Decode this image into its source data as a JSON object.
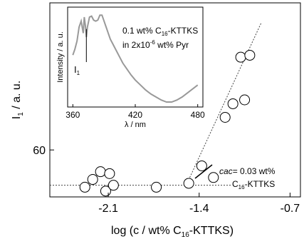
{
  "chart_data": {
    "type": "scatter",
    "xlabel": {
      "main": "log (c / wt% C",
      "sub": "16",
      "tail": "-KTTKS)"
    },
    "ylabel": {
      "main": "I",
      "sub": "1",
      "tail": " / a. u."
    },
    "xlim": [
      -2.55,
      -0.62
    ],
    "ylim": [
      0,
      1
    ],
    "xticks": [
      -2.1,
      -1.4,
      -0.7
    ],
    "xtick_labels": [
      "-2.1",
      "-1.4",
      "-0.7"
    ],
    "yticks": [
      0.242
    ],
    "ytick_labels": [
      "60"
    ],
    "grid": false,
    "series": [
      {
        "points": [
          {
            "x": -2.28,
            "y": 0.05
          },
          {
            "x": -2.22,
            "y": 0.09
          },
          {
            "x": -2.16,
            "y": 0.13
          },
          {
            "x": -2.12,
            "y": 0.03
          },
          {
            "x": -2.09,
            "y": 0.12
          },
          {
            "x": -2.06,
            "y": 0.06
          },
          {
            "x": -1.73,
            "y": 0.05
          },
          {
            "x": -1.48,
            "y": 0.07
          },
          {
            "x": -1.38,
            "y": 0.16
          },
          {
            "x": -1.29,
            "y": 0.1
          },
          {
            "x": -1.2,
            "y": 0.41
          },
          {
            "x": -1.14,
            "y": 0.48
          },
          {
            "x": -1.05,
            "y": 0.5
          },
          {
            "x": -1.08,
            "y": 0.72
          },
          {
            "x": -1.01,
            "y": 0.73
          }
        ]
      }
    ],
    "baseline_fit": {
      "x": [
        -2.55,
        -1.15
      ],
      "y": [
        0.06,
        0.06
      ]
    },
    "rise_fit": {
      "x": [
        -1.5,
        -0.92
      ],
      "y": [
        0.06,
        0.9
      ]
    },
    "annotation": {
      "line1": {
        "italic": "cac",
        "rest": "= 0.03 wt%"
      },
      "line2": {
        "main": "C",
        "sub": "16",
        "tail": "-KTTKS"
      }
    },
    "inset": {
      "type": "line",
      "xlabel": "λ / nm",
      "ylabel": "Intensity / a. u.",
      "xlim": [
        355,
        485
      ],
      "ylim": [
        0,
        1
      ],
      "xticks": [
        360,
        420,
        480
      ],
      "xtick_labels": [
        "360",
        "420",
        "480"
      ],
      "legend_line1": {
        "main": "0.1 wt% C",
        "sub": "16",
        "tail": "-KTTKS"
      },
      "legend_line2": {
        "main": "in 2x10",
        "sup": "-6",
        "tail": " wt% Pyr"
      },
      "marker_label": {
        "main": "I",
        "sub": "1"
      },
      "marker_x": 373,
      "spectrum": {
        "x": [
          360,
          362,
          364,
          366,
          368,
          370,
          371,
          372,
          373,
          374,
          376,
          378,
          380,
          382,
          384,
          386,
          388,
          390,
          392,
          394,
          396,
          398,
          400,
          404,
          408,
          412,
          416,
          420,
          425,
          430,
          435,
          440,
          445,
          450,
          455,
          460,
          465,
          470,
          475,
          480
        ],
        "y": [
          0.52,
          0.58,
          0.66,
          0.8,
          0.86,
          0.74,
          0.9,
          0.82,
          0.7,
          0.8,
          0.9,
          0.91,
          0.87,
          0.86,
          0.87,
          0.92,
          0.92,
          0.86,
          0.8,
          0.74,
          0.68,
          0.64,
          0.6,
          0.52,
          0.44,
          0.38,
          0.32,
          0.27,
          0.22,
          0.17,
          0.13,
          0.1,
          0.07,
          0.05,
          0.05,
          0.07,
          0.1,
          0.14,
          0.18,
          0.22
        ]
      }
    }
  }
}
